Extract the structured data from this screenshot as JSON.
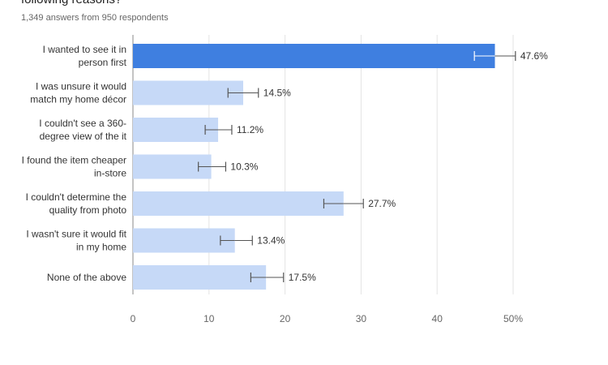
{
  "chart_data": {
    "type": "bar",
    "orientation": "horizontal",
    "title": "following reasons?",
    "subtitle": "1,349 answers from 950 respondents",
    "categories": [
      [
        "I wanted to see it in",
        "person first"
      ],
      [
        "I was unsure it would",
        "match my home décor"
      ],
      [
        "I couldn't see a 360-",
        "degree view of the it"
      ],
      [
        "I found the item cheaper",
        "in-store"
      ],
      [
        "I couldn't determine the",
        "quality from photo"
      ],
      [
        "I wasn't sure it would fit",
        "in my home"
      ],
      [
        "None of the above"
      ]
    ],
    "values": [
      47.6,
      14.5,
      11.2,
      10.3,
      27.7,
      13.4,
      17.5
    ],
    "value_labels": [
      "47.6%",
      "14.5%",
      "11.2%",
      "10.3%",
      "27.7%",
      "13.4%",
      "17.5%"
    ],
    "error_bars": [
      [
        44.9,
        50.3
      ],
      [
        12.5,
        16.5
      ],
      [
        9.5,
        13.0
      ],
      [
        8.6,
        12.2
      ],
      [
        25.1,
        30.3
      ],
      [
        11.5,
        15.7
      ],
      [
        15.5,
        19.8
      ]
    ],
    "xlim": [
      0,
      50
    ],
    "xticks": [
      0,
      10,
      20,
      30,
      40,
      50
    ],
    "xtick_labels": [
      "0",
      "10",
      "20",
      "30",
      "40",
      "50%"
    ],
    "highlight_index": 0,
    "grid": true,
    "colors": {
      "bar": "#c6d9f7",
      "highlight": "#3f7fe0",
      "error": "#555555",
      "grid": "#e3e3e3",
      "axis": "#8a8a8a"
    }
  }
}
